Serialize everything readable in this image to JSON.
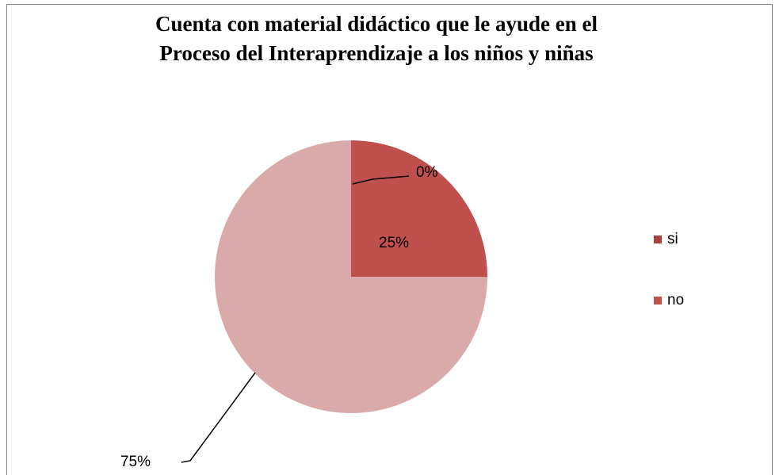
{
  "chart_data": {
    "type": "pie",
    "title": [
      "Cuenta con material didáctico que le ayude en el",
      "Proceso del Interaprendizaje a los  niños y niñas"
    ],
    "categories": [
      "si",
      "no",
      null
    ],
    "values": [
      0,
      25,
      75
    ],
    "value_labels": [
      "0%",
      "25%",
      "75%"
    ],
    "colors": [
      "#a9423f",
      "#c0504d",
      "#d9aaa9"
    ],
    "legend": "right"
  }
}
